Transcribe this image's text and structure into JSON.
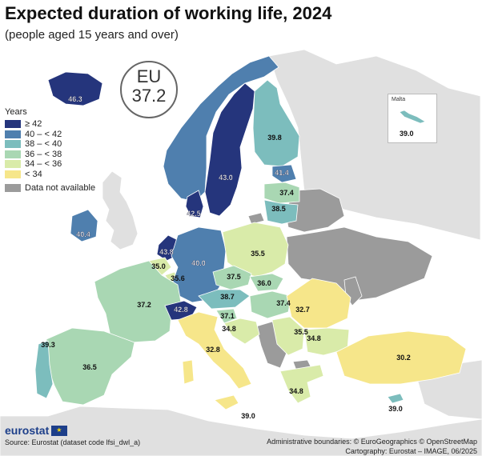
{
  "title": "Expected duration of working life, 2024",
  "subtitle": "(people aged 15 years and over)",
  "eu": {
    "label": "EU",
    "value": "37.2"
  },
  "legend": {
    "title": "Years",
    "items": [
      {
        "label": "≥ 42",
        "color": "#25357c"
      },
      {
        "label": "40 – < 42",
        "color": "#4f7fae"
      },
      {
        "label": "38 – < 40",
        "color": "#7cbdbd"
      },
      {
        "label": "36 – < 38",
        "color": "#a9d7b3"
      },
      {
        "label": "34 – < 36",
        "color": "#d9eba9"
      },
      {
        "label": "< 34",
        "color": "#f6e68a"
      }
    ],
    "na": {
      "label": "Data not available",
      "color": "#9b9b9b"
    }
  },
  "colors": {
    "sea": "#ffffff",
    "land_non_eu": "#e0e0e0",
    "border": "#ffffff"
  },
  "inset": {
    "name": "Malta",
    "value": "39.0"
  },
  "countries": [
    {
      "id": "IS",
      "value": "46.3",
      "cls": 0
    },
    {
      "id": "NO",
      "value": "",
      "cls": 1
    },
    {
      "id": "SE",
      "value": "43.0",
      "cls": 0
    },
    {
      "id": "FI",
      "value": "39.8",
      "cls": 2
    },
    {
      "id": "DK",
      "value": "42.5",
      "cls": 0
    },
    {
      "id": "EE",
      "value": "41.4",
      "cls": 1
    },
    {
      "id": "LV",
      "value": "37.4",
      "cls": 3
    },
    {
      "id": "LT",
      "value": "38.5",
      "cls": 2
    },
    {
      "id": "IE",
      "value": "40.4",
      "cls": 1
    },
    {
      "id": "NL",
      "value": "43.8",
      "cls": 0
    },
    {
      "id": "BE",
      "value": "35.0",
      "cls": 4
    },
    {
      "id": "LU",
      "value": "35.6",
      "cls": 4
    },
    {
      "id": "DE",
      "value": "40.0",
      "cls": 1
    },
    {
      "id": "PL",
      "value": "35.5",
      "cls": 4
    },
    {
      "id": "CZ",
      "value": "37.5",
      "cls": 3
    },
    {
      "id": "SK",
      "value": "36.0",
      "cls": 3
    },
    {
      "id": "AT",
      "value": "38.7",
      "cls": 2
    },
    {
      "id": "HU",
      "value": "37.4",
      "cls": 3
    },
    {
      "id": "SI",
      "value": "37.1",
      "cls": 3
    },
    {
      "id": "HR",
      "value": "34.8",
      "cls": 4
    },
    {
      "id": "RO",
      "value": "32.7",
      "cls": 5
    },
    {
      "id": "RS",
      "value": "35.5",
      "cls": 4
    },
    {
      "id": "BG",
      "value": "34.8",
      "cls": 4
    },
    {
      "id": "FR",
      "value": "37.2",
      "cls": 3
    },
    {
      "id": "CH",
      "value": "42.8",
      "cls": 0
    },
    {
      "id": "IT",
      "value": "32.8",
      "cls": 5
    },
    {
      "id": "ES",
      "value": "36.5",
      "cls": 3
    },
    {
      "id": "PT",
      "value": "39.3",
      "cls": 2
    },
    {
      "id": "GR",
      "value": "34.8",
      "cls": 4
    },
    {
      "id": "TR",
      "value": "30.2",
      "cls": 5
    },
    {
      "id": "CY",
      "value": "39.0",
      "cls": 2
    },
    {
      "id": "MT_MAIN",
      "value": "39.0",
      "cls": 2
    }
  ],
  "no_data_regions": [
    "UA",
    "BY",
    "RU",
    "MD",
    "BA",
    "ME",
    "AL",
    "MK",
    "XK"
  ],
  "source": "Source: Eurostat (dataset code lfsi_dwl_a)",
  "credits": {
    "line1": "Administrative boundaries: © EuroGeographics © OpenStreetMap",
    "line2": "Cartography: Eurostat – IMAGE, 06/2025"
  },
  "logo": "eurostat"
}
